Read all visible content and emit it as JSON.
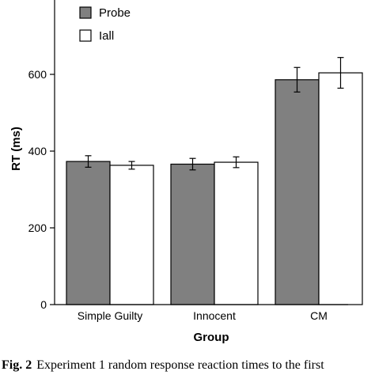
{
  "chart_data": {
    "type": "bar",
    "categories": [
      "Simple Guilty",
      "Innocent",
      "CM"
    ],
    "series": [
      {
        "name": "Probe",
        "values": [
          373,
          366,
          586
        ],
        "errors": [
          15,
          15,
          32
        ],
        "color": "#808080"
      },
      {
        "name": "Iall",
        "values": [
          363,
          371,
          604
        ],
        "errors": [
          10,
          14,
          40
        ],
        "color": "#ffffff"
      }
    ],
    "xlabel": "Group",
    "ylabel": "RT (ms)",
    "ylim": [
      0,
      700
    ],
    "yticks": [
      0,
      200,
      400,
      600
    ],
    "legend_position": "top-left",
    "grid": false
  },
  "caption": {
    "label": "Fig. 2",
    "text": "Experiment 1 random response reaction times to the first"
  }
}
